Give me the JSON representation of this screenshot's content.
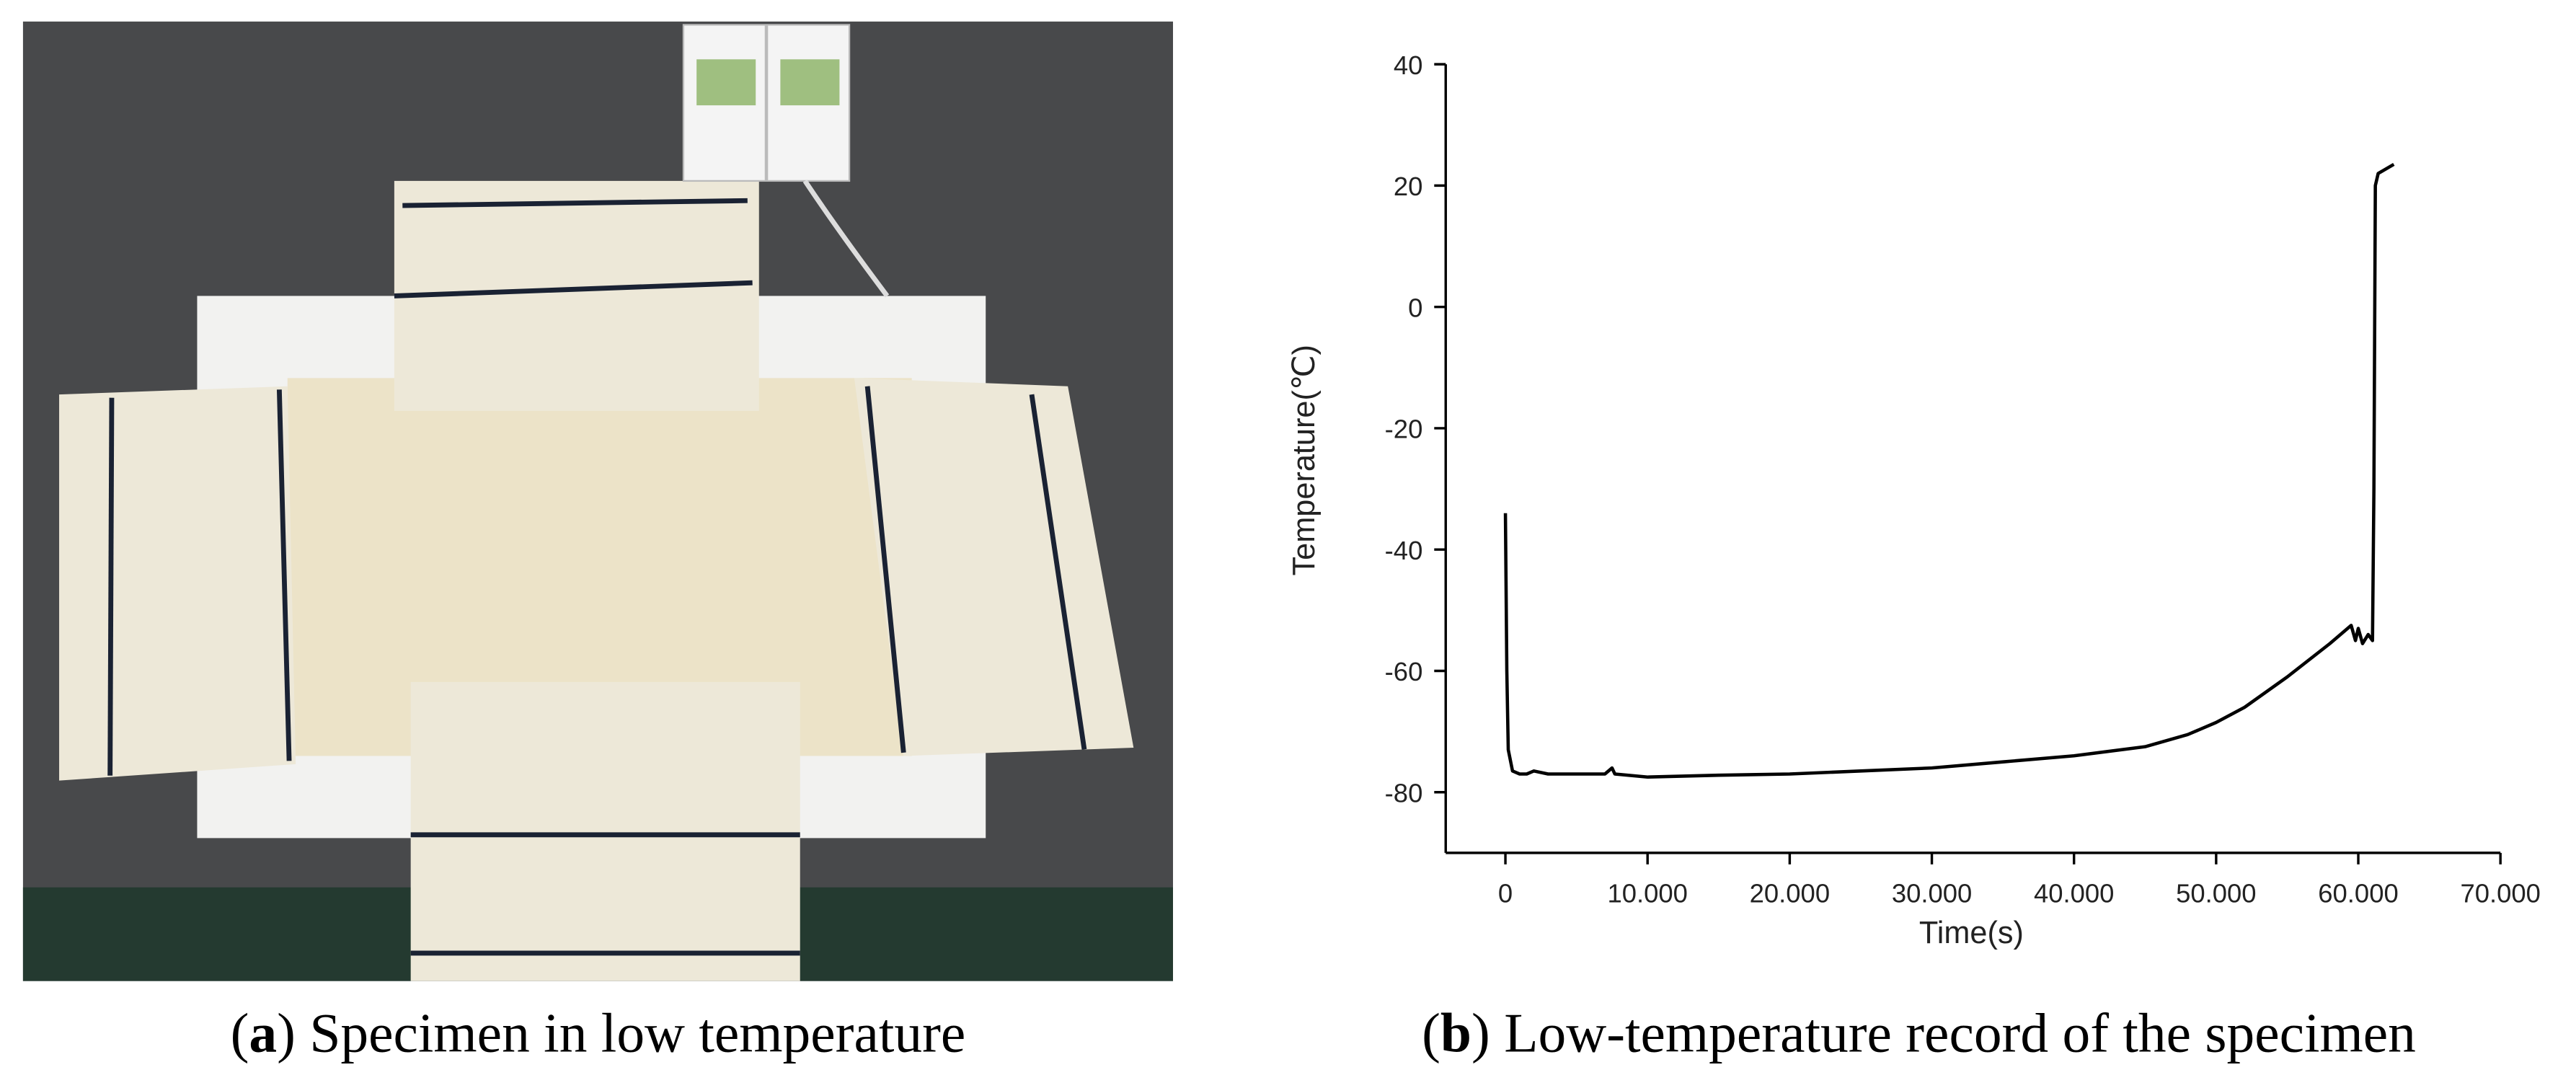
{
  "captions": [
    {
      "label": "a",
      "text": "Specimen in low temperature"
    },
    {
      "label": "b",
      "text": "Low-temperature record of the specimen"
    }
  ],
  "chart_data": {
    "type": "line",
    "xlabel": "Time(s)",
    "ylabel": "Temperature(℃)",
    "x": [
      0,
      100,
      200,
      500,
      1000,
      1500,
      2000,
      3000,
      5000,
      7000,
      7500,
      7700,
      10000,
      15000,
      20000,
      25000,
      30000,
      35000,
      40000,
      45000,
      48000,
      50000,
      52000,
      55000,
      58000,
      59500,
      59800,
      60000,
      60300,
      60700,
      61000,
      61100,
      61200,
      61400,
      62500
    ],
    "values": [
      -34,
      -60,
      -73,
      -76.5,
      -77,
      -77,
      -76.5,
      -77,
      -77,
      -77,
      -76,
      -77,
      -77.5,
      -77.2,
      -77,
      -76.5,
      -76,
      -75,
      -74,
      -72.5,
      -70.5,
      -68.5,
      -66,
      -61,
      -55.5,
      -52.5,
      -55,
      -53,
      -55.5,
      -54,
      -55,
      -30,
      20,
      22,
      23.5
    ],
    "color": "#000000",
    "xlim": [
      -4200,
      70000
    ],
    "ylim": [
      -90,
      40
    ],
    "xticks": [
      0,
      {
        "value": 10000,
        "label": "10.000"
      },
      {
        "value": 20000,
        "label": "20.000"
      },
      {
        "value": 30000,
        "label": "30.000"
      },
      {
        "value": 40000,
        "label": "40.000"
      },
      {
        "value": 50000,
        "label": "50.000"
      },
      {
        "value": 60000,
        "label": "60.000"
      },
      {
        "value": 70000,
        "label": "70.000"
      }
    ],
    "yticks": [
      40,
      20,
      0,
      -20,
      -40,
      -60,
      -80
    ]
  }
}
